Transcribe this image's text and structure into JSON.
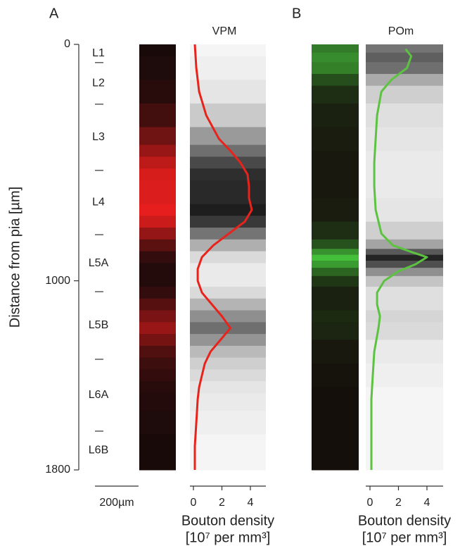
{
  "chart_data": [
    {
      "type": "line",
      "panel_label": "A",
      "title": "VPM",
      "ylabel": "Distance from pia [µm]",
      "ylim": [
        0,
        1800
      ],
      "yticks": [
        0,
        1000,
        1800
      ],
      "layers": {
        "labels": [
          "L1",
          "L2",
          "L3",
          "L4",
          "L5A",
          "L5B",
          "L6A",
          "L6B"
        ],
        "boundaries": [
          77,
          253,
          533,
          805,
          1046,
          1332,
          1636
        ]
      },
      "scale_bar": "200µm",
      "xlabel": "Bouton density",
      "xunit": "[10⁷ per mm³]",
      "xlim": [
        0,
        5
      ],
      "xticks": [
        0,
        2,
        4
      ],
      "y": [
        0,
        100,
        200,
        300,
        400,
        450,
        500,
        550,
        600,
        650,
        700,
        750,
        800,
        850,
        900,
        950,
        1000,
        1050,
        1100,
        1150,
        1200,
        1250,
        1300,
        1350,
        1400,
        1450,
        1500,
        1600,
        1700,
        1800
      ],
      "series": [
        {
          "color": "#e8231c",
          "values": [
            0.1,
            0.2,
            0.4,
            0.9,
            1.8,
            2.6,
            3.3,
            3.8,
            3.9,
            3.9,
            4.1,
            3.6,
            2.5,
            1.4,
            0.6,
            0.3,
            0.3,
            0.6,
            1.3,
            2.0,
            2.6,
            1.9,
            1.2,
            0.8,
            0.6,
            0.4,
            0.3,
            0.2,
            0.1,
            0.1
          ]
        }
      ]
    },
    {
      "type": "line",
      "panel_label": "B",
      "title": "POm",
      "ylim": [
        0,
        1800
      ],
      "xlabel": "Bouton density",
      "xunit": "[10⁷ per mm³]",
      "xlim": [
        0,
        5
      ],
      "xticks": [
        0,
        2,
        4
      ],
      "y": [
        20,
        50,
        100,
        150,
        200,
        300,
        400,
        500,
        600,
        700,
        800,
        850,
        880,
        900,
        930,
        960,
        1000,
        1050,
        1100,
        1150,
        1200,
        1300,
        1400,
        1500,
        1800
      ],
      "series": [
        {
          "color": "#5cc341",
          "values": [
            2.5,
            2.9,
            2.6,
            1.5,
            0.8,
            0.5,
            0.4,
            0.3,
            0.3,
            0.4,
            0.8,
            1.6,
            3.0,
            4.0,
            3.2,
            2.0,
            1.0,
            0.5,
            0.5,
            0.7,
            0.6,
            0.3,
            0.2,
            0.1,
            0.1
          ]
        }
      ]
    }
  ]
}
